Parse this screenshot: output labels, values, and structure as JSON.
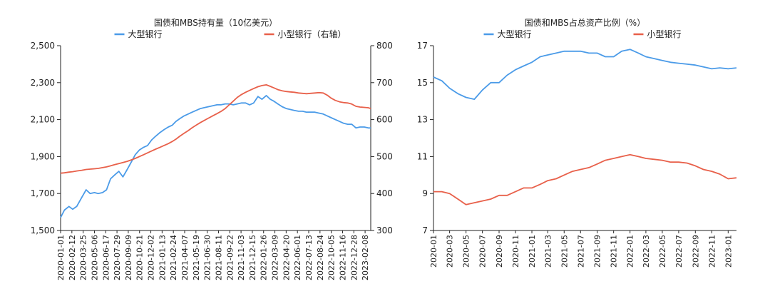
{
  "chart_data": [
    {
      "type": "line",
      "title": "国债和MBS持有量（10亿美元）",
      "colors": {
        "large": "#4b9be8",
        "small": "#e8604a"
      },
      "left_axis": {
        "min": 1500,
        "max": 2500,
        "ticks": [
          "1,500",
          "1,700",
          "1,900",
          "2,100",
          "2,300",
          "2,500"
        ]
      },
      "right_axis": {
        "min": 300,
        "max": 800,
        "ticks": [
          "300",
          "400",
          "500",
          "600",
          "700",
          "800"
        ]
      },
      "x_range": [
        "2020-01-01",
        "2023-03-01"
      ],
      "x_ticks": [
        "2020-01-01",
        "2020-02-12",
        "2020-03-25",
        "2020-05-06",
        "2020-06-17",
        "2020-07-29",
        "2020-09-09",
        "2020-10-21",
        "2020-12-02",
        "2021-01-13",
        "2021-02-24",
        "2021-04-07",
        "2021-05-19",
        "2021-06-30",
        "2021-08-11",
        "2021-09-22",
        "2021-11-03",
        "2021-12-15",
        "2022-01-26",
        "2022-03-09",
        "2022-04-20",
        "2022-06-01",
        "2022-07-13",
        "2022-08-24",
        "2022-10-05",
        "2022-11-16",
        "2022-12-28",
        "2023-02-08"
      ],
      "series": [
        {
          "name": "大型银行",
          "axis": "left",
          "x": [
            "2020-01-01",
            "2020-01-15",
            "2020-02-01",
            "2020-02-15",
            "2020-03-01",
            "2020-03-20",
            "2020-04-05",
            "2020-04-20",
            "2020-05-06",
            "2020-05-20",
            "2020-06-05",
            "2020-06-20",
            "2020-07-05",
            "2020-07-20",
            "2020-08-05",
            "2020-08-20",
            "2020-09-05",
            "2020-09-20",
            "2020-10-05",
            "2020-10-20",
            "2020-11-05",
            "2020-11-20",
            "2020-12-05",
            "2020-12-20",
            "2021-01-05",
            "2021-01-20",
            "2021-02-05",
            "2021-02-20",
            "2021-03-05",
            "2021-03-20",
            "2021-04-05",
            "2021-04-20",
            "2021-05-05",
            "2021-05-20",
            "2021-06-05",
            "2021-06-20",
            "2021-07-05",
            "2021-07-20",
            "2021-08-05",
            "2021-08-20",
            "2021-09-05",
            "2021-09-20",
            "2021-10-05",
            "2021-10-20",
            "2021-11-05",
            "2021-11-20",
            "2021-12-05",
            "2021-12-20",
            "2022-01-05",
            "2022-01-20",
            "2022-02-05",
            "2022-02-20",
            "2022-03-05",
            "2022-03-20",
            "2022-04-05",
            "2022-04-20",
            "2022-05-05",
            "2022-05-20",
            "2022-06-05",
            "2022-06-20",
            "2022-07-05",
            "2022-07-20",
            "2022-08-05",
            "2022-08-20",
            "2022-09-05",
            "2022-09-20",
            "2022-10-05",
            "2022-10-20",
            "2022-11-05",
            "2022-11-20",
            "2022-12-05",
            "2022-12-20",
            "2023-01-05",
            "2023-01-20",
            "2023-02-05",
            "2023-02-20",
            "2023-03-01"
          ],
          "values": [
            1570,
            1610,
            1630,
            1615,
            1630,
            1680,
            1720,
            1700,
            1705,
            1700,
            1705,
            1720,
            1780,
            1800,
            1820,
            1790,
            1830,
            1870,
            1910,
            1935,
            1950,
            1960,
            1990,
            2010,
            2030,
            2045,
            2060,
            2070,
            2090,
            2105,
            2120,
            2130,
            2140,
            2150,
            2160,
            2165,
            2170,
            2175,
            2180,
            2180,
            2185,
            2185,
            2180,
            2185,
            2190,
            2190,
            2180,
            2190,
            2225,
            2210,
            2230,
            2210,
            2200,
            2185,
            2170,
            2160,
            2155,
            2150,
            2145,
            2145,
            2140,
            2140,
            2140,
            2135,
            2130,
            2120,
            2110,
            2100,
            2090,
            2080,
            2075,
            2075,
            2055,
            2060,
            2060,
            2055,
            2055
          ]
        },
        {
          "name": "小型银行（右轴）",
          "axis": "right",
          "x": [
            "2020-01-01",
            "2020-01-15",
            "2020-02-01",
            "2020-02-15",
            "2020-03-01",
            "2020-03-20",
            "2020-04-05",
            "2020-04-20",
            "2020-05-06",
            "2020-05-20",
            "2020-06-05",
            "2020-06-20",
            "2020-07-05",
            "2020-07-20",
            "2020-08-05",
            "2020-08-20",
            "2020-09-05",
            "2020-09-20",
            "2020-10-05",
            "2020-10-20",
            "2020-11-05",
            "2020-11-20",
            "2020-12-05",
            "2020-12-20",
            "2021-01-05",
            "2021-01-20",
            "2021-02-05",
            "2021-02-20",
            "2021-03-05",
            "2021-03-20",
            "2021-04-05",
            "2021-04-20",
            "2021-05-05",
            "2021-05-20",
            "2021-06-05",
            "2021-06-20",
            "2021-07-05",
            "2021-07-20",
            "2021-08-05",
            "2021-08-20",
            "2021-09-05",
            "2021-09-20",
            "2021-10-05",
            "2021-10-20",
            "2021-11-05",
            "2021-11-20",
            "2021-12-05",
            "2021-12-20",
            "2022-01-05",
            "2022-01-20",
            "2022-02-05",
            "2022-02-20",
            "2022-03-05",
            "2022-03-20",
            "2022-04-05",
            "2022-04-20",
            "2022-05-05",
            "2022-05-20",
            "2022-06-05",
            "2022-06-20",
            "2022-07-05",
            "2022-07-20",
            "2022-08-05",
            "2022-08-20",
            "2022-09-05",
            "2022-09-20",
            "2022-10-05",
            "2022-10-20",
            "2022-11-05",
            "2022-11-20",
            "2022-12-05",
            "2022-12-20",
            "2023-01-05",
            "2023-01-20",
            "2023-02-05",
            "2023-02-20",
            "2023-03-01"
          ],
          "values": [
            455,
            456,
            458,
            459,
            461,
            463,
            465,
            466,
            467,
            468,
            470,
            472,
            475,
            478,
            481,
            484,
            487,
            491,
            495,
            500,
            505,
            510,
            515,
            520,
            525,
            530,
            535,
            541,
            547,
            555,
            563,
            570,
            578,
            585,
            592,
            598,
            604,
            610,
            616,
            622,
            630,
            640,
            650,
            660,
            668,
            674,
            679,
            684,
            689,
            692,
            694,
            690,
            686,
            681,
            678,
            676,
            675,
            674,
            672,
            671,
            670,
            671,
            672,
            673,
            672,
            666,
            658,
            652,
            648,
            646,
            645,
            642,
            636,
            634,
            633,
            632,
            630
          ]
        }
      ],
      "legend": [
        {
          "label": "大型银行",
          "color": "#4b9be8"
        },
        {
          "label": "小型银行（右轴）",
          "color": "#e8604a"
        }
      ],
      "legend_position": "top",
      "grid": false
    },
    {
      "type": "line",
      "title": "国债和MBS占总资产比例（%）",
      "colors": {
        "large": "#4b9be8",
        "small": "#e8604a"
      },
      "y_axis": {
        "min": 7,
        "max": 17,
        "ticks": [
          "7",
          "9",
          "11",
          "13",
          "15",
          "17"
        ]
      },
      "x_range": [
        "2020-01",
        "2023-02"
      ],
      "x_ticks": [
        "2020-01",
        "2020-03",
        "2020-05",
        "2020-07",
        "2020-09",
        "2020-11",
        "2021-01",
        "2021-03",
        "2021-05",
        "2021-07",
        "2021-09",
        "2021-11",
        "2022-01",
        "2022-03",
        "2022-05",
        "2022-07",
        "2022-09",
        "2022-11",
        "2023-01"
      ],
      "series": [
        {
          "name": "大型银行",
          "x": [
            "2020-01",
            "2020-02",
            "2020-03",
            "2020-04",
            "2020-05",
            "2020-06",
            "2020-07",
            "2020-08",
            "2020-09",
            "2020-10",
            "2020-11",
            "2020-12",
            "2021-01",
            "2021-02",
            "2021-03",
            "2021-04",
            "2021-05",
            "2021-06",
            "2021-07",
            "2021-08",
            "2021-09",
            "2021-10",
            "2021-11",
            "2021-12",
            "2022-01",
            "2022-02",
            "2022-03",
            "2022-04",
            "2022-05",
            "2022-06",
            "2022-07",
            "2022-08",
            "2022-09",
            "2022-10",
            "2022-11",
            "2022-12",
            "2023-01",
            "2023-02"
          ],
          "values": [
            15.3,
            15.1,
            14.7,
            14.4,
            14.2,
            14.1,
            14.6,
            15.0,
            15.0,
            15.4,
            15.7,
            15.9,
            16.1,
            16.4,
            16.5,
            16.6,
            16.7,
            16.7,
            16.7,
            16.6,
            16.6,
            16.4,
            16.4,
            16.7,
            16.8,
            16.6,
            16.4,
            16.3,
            16.2,
            16.1,
            16.05,
            16.0,
            15.95,
            15.85,
            15.75,
            15.8,
            15.75,
            15.8
          ]
        },
        {
          "name": "小型银行",
          "x": [
            "2020-01",
            "2020-02",
            "2020-03",
            "2020-04",
            "2020-05",
            "2020-06",
            "2020-07",
            "2020-08",
            "2020-09",
            "2020-10",
            "2020-11",
            "2020-12",
            "2021-01",
            "2021-02",
            "2021-03",
            "2021-04",
            "2021-05",
            "2021-06",
            "2021-07",
            "2021-08",
            "2021-09",
            "2021-10",
            "2021-11",
            "2021-12",
            "2022-01",
            "2022-02",
            "2022-03",
            "2022-04",
            "2022-05",
            "2022-06",
            "2022-07",
            "2022-08",
            "2022-09",
            "2022-10",
            "2022-11",
            "2022-12",
            "2023-01",
            "2023-02"
          ],
          "values": [
            9.1,
            9.1,
            9.0,
            8.7,
            8.4,
            8.5,
            8.6,
            8.7,
            8.9,
            8.9,
            9.1,
            9.3,
            9.3,
            9.5,
            9.7,
            9.8,
            10.0,
            10.2,
            10.3,
            10.4,
            10.6,
            10.8,
            10.9,
            11.0,
            11.1,
            11.0,
            10.9,
            10.85,
            10.8,
            10.7,
            10.7,
            10.65,
            10.5,
            10.3,
            10.2,
            10.05,
            9.8,
            9.85
          ]
        }
      ],
      "legend": [
        {
          "label": "大型银行",
          "color": "#4b9be8"
        },
        {
          "label": "小型银行",
          "color": "#e8604a"
        }
      ],
      "legend_position": "top",
      "grid": false
    }
  ]
}
